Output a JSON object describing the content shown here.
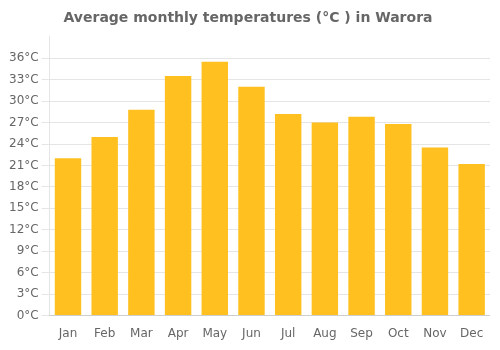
{
  "chart_data": {
    "type": "bar",
    "title": "Average monthly temperatures (°C ) in Warora",
    "categories": [
      "Jan",
      "Feb",
      "Mar",
      "Apr",
      "May",
      "Jun",
      "Jul",
      "Aug",
      "Sep",
      "Oct",
      "Nov",
      "Dec"
    ],
    "values": [
      22.0,
      25.0,
      28.8,
      33.5,
      35.5,
      32.0,
      28.2,
      27.0,
      27.8,
      26.8,
      23.5,
      21.2
    ],
    "color": "#FFC020",
    "ylim": [
      0,
      39
    ],
    "yticks": [
      {
        "value": 0,
        "label": "0°C"
      },
      {
        "value": 3,
        "label": "3°C"
      },
      {
        "value": 6,
        "label": "6°C"
      },
      {
        "value": 9,
        "label": "9°C"
      },
      {
        "value": 12,
        "label": "12°C"
      },
      {
        "value": 15,
        "label": "15°C"
      },
      {
        "value": 18,
        "label": "18°C"
      },
      {
        "value": 21,
        "label": "21°C"
      },
      {
        "value": 24,
        "label": "24°C"
      },
      {
        "value": 27,
        "label": "27°C"
      },
      {
        "value": 30,
        "label": "30°C"
      },
      {
        "value": 33,
        "label": "33°C"
      },
      {
        "value": 36,
        "label": "36°C"
      }
    ],
    "grid": true
  }
}
